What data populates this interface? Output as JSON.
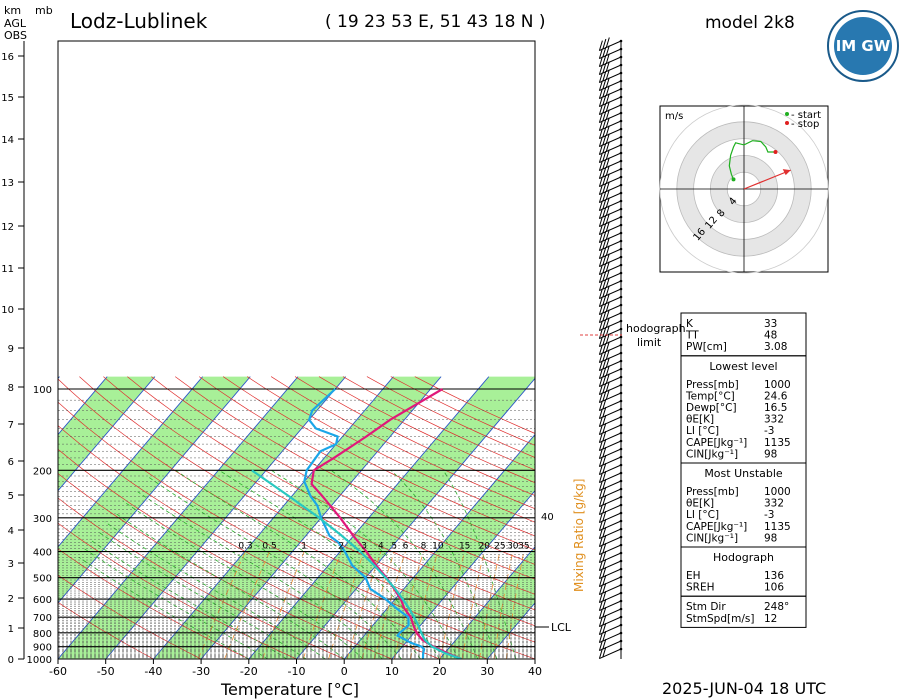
{
  "header": {
    "station": "Lodz-Lublinek",
    "coords": "( 19 23 53  E, 51 43 18 N )",
    "model": "model 2k8",
    "logo_text": "IM GW",
    "footer_date": "2025-JUN-04   18 UTC"
  },
  "left_scale": {
    "km_label": "km",
    "mb_label": "mb",
    "agl_label": "AGL",
    "obs_label": "OBS"
  },
  "chart_data": {
    "type": "line",
    "xlabel": "Temperature [°C]",
    "mixing_ratio_label": "Mixing Ratio [g/kg]",
    "xlim": [
      -60,
      40
    ],
    "ylim_hpa": [
      1000,
      100
    ],
    "x_ticks": [
      "-60",
      "-50",
      "-40",
      "-30",
      "-20",
      "-10",
      "0",
      "10",
      "20",
      "30",
      "40"
    ],
    "pressure_ticks": [
      "100",
      "200",
      "300",
      "400",
      "500",
      "600",
      "700",
      "800",
      "900",
      "1000"
    ],
    "height_ticks_km": [
      "0",
      "1",
      "2",
      "3",
      "4",
      "5",
      "6",
      "7",
      "8",
      "9",
      "10",
      "11",
      "12",
      "13",
      "14",
      "15",
      "16"
    ],
    "mixing_ratio_values": [
      "0.3",
      "0.5",
      "1",
      "2",
      "3",
      "4",
      "5",
      "6",
      "8",
      "10",
      "15",
      "20",
      "25",
      "30",
      "35"
    ],
    "mixing_ratio_side_label": "40",
    "lcl_label": "LCL",
    "lcl_pressure_hpa": 900,
    "series": [
      {
        "color": "#e0187a",
        "points": [
          [
            1000,
            24.6
          ],
          [
            950,
            20.5
          ],
          [
            900,
            16.5
          ],
          [
            850,
            13
          ],
          [
            800,
            10.5
          ],
          [
            750,
            8.5
          ],
          [
            700,
            6.5
          ],
          [
            650,
            3.6
          ],
          [
            600,
            1.2
          ],
          [
            550,
            -2
          ],
          [
            500,
            -5.6
          ],
          [
            450,
            -10
          ],
          [
            400,
            -14.5
          ],
          [
            350,
            -20
          ],
          [
            300,
            -26
          ],
          [
            250,
            -33.5
          ],
          [
            225,
            -38
          ],
          [
            200,
            -40
          ],
          [
            180,
            -38
          ],
          [
            150,
            -35
          ],
          [
            130,
            -33
          ],
          [
            100,
            -27.5
          ]
        ]
      },
      {
        "color": "#1aa6e8",
        "points": [
          [
            1000,
            16.5
          ],
          [
            950,
            15.5
          ],
          [
            920,
            15
          ],
          [
            900,
            14
          ],
          [
            870,
            11
          ],
          [
            850,
            9.5
          ],
          [
            820,
            7
          ],
          [
            800,
            7
          ],
          [
            750,
            7.5
          ],
          [
            700,
            6
          ],
          [
            650,
            2
          ],
          [
            600,
            -2
          ],
          [
            550,
            -7
          ],
          [
            500,
            -10
          ],
          [
            450,
            -15
          ],
          [
            400,
            -19
          ],
          [
            370,
            -22
          ],
          [
            350,
            -25
          ],
          [
            300,
            -30
          ],
          [
            270,
            -33
          ],
          [
            250,
            -36
          ],
          [
            220,
            -40
          ],
          [
            200,
            -41.5
          ],
          [
            170,
            -42
          ],
          [
            160,
            -40
          ],
          [
            150,
            -41
          ],
          [
            140,
            -47
          ],
          [
            130,
            -50
          ],
          [
            120,
            -51
          ],
          [
            100,
            -50
          ]
        ]
      },
      {
        "color": "#28c8c0",
        "points": [
          [
            1000,
            24.6
          ],
          [
            950,
            20
          ],
          [
            900,
            16.2
          ],
          [
            850,
            13.5
          ],
          [
            800,
            11.5
          ],
          [
            750,
            9.5
          ],
          [
            700,
            7.2
          ],
          [
            650,
            4.6
          ],
          [
            600,
            1.6
          ],
          [
            550,
            -1.8
          ],
          [
            500,
            -5.8
          ],
          [
            450,
            -10.4
          ],
          [
            400,
            -15.8
          ],
          [
            350,
            -22.4
          ],
          [
            300,
            -30.4
          ],
          [
            250,
            -40.5
          ],
          [
            200,
            -53
          ]
        ]
      }
    ]
  },
  "hodograph": {
    "unit": "m/s",
    "legend_start": "- start",
    "legend_stop": "- stop",
    "ring_labels": [
      "4",
      "8",
      "12",
      "16"
    ],
    "storm_motion_dir_deg": 248,
    "storm_motion_speed": 12,
    "trace_uv": [
      [
        -2.5,
        2.3
      ],
      [
        -3,
        3.5
      ],
      [
        -3.5,
        5.5
      ],
      [
        -3.2,
        8
      ],
      [
        -2.5,
        10
      ],
      [
        -2,
        11
      ],
      [
        0,
        10.5
      ],
      [
        2,
        11.5
      ],
      [
        4,
        11.3
      ],
      [
        5.2,
        10
      ],
      [
        5.7,
        8.8
      ],
      [
        7.5,
        8.8
      ]
    ]
  },
  "hodograph_limit_label": "hodograph limit",
  "indices": {
    "block1": [
      {
        "k": "K",
        "v": "33"
      },
      {
        "k": "TT",
        "v": "48"
      },
      {
        "k": "PW[cm]",
        "v": "3.08"
      }
    ],
    "lowest_title": "Lowest level",
    "block2": [
      {
        "k": "Press[mb]",
        "v": "1000"
      },
      {
        "k": "Temp[°C]",
        "v": "24.6"
      },
      {
        "k": "Dewp[°C]",
        "v": "16.5"
      },
      {
        "k": "θE[K]",
        "v": "332"
      },
      {
        "k": "LI [°C]",
        "v": "-3"
      },
      {
        "k": "CAPE[Jkg⁻¹]",
        "v": "1135"
      },
      {
        "k": "CIN[Jkg⁻¹]",
        "v": "98"
      }
    ],
    "unstable_title": "Most Unstable",
    "block3": [
      {
        "k": "Press[mb]",
        "v": "1000"
      },
      {
        "k": "θE[K]",
        "v": "332"
      },
      {
        "k": "LI [°C]",
        "v": "-3"
      },
      {
        "k": "CAPE[Jkg⁻¹]",
        "v": "1135"
      },
      {
        "k": "CIN[Jkg⁻¹]",
        "v": "98"
      }
    ],
    "hodo_title": "Hodograph",
    "block4": [
      {
        "k": "EH",
        "v": "136"
      },
      {
        "k": "SREH",
        "v": "106"
      }
    ],
    "block5": [
      {
        "k": "Stm Dir",
        "v": "248°"
      },
      {
        "k": "StmSpd[m/s]",
        "v": "12"
      }
    ]
  }
}
